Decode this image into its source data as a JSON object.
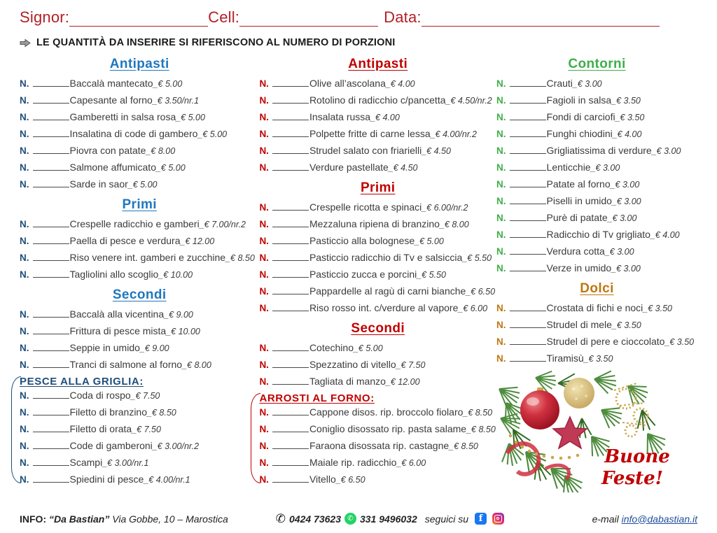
{
  "header": {
    "signor_label": "Signor:",
    "cell_label": "Cell:",
    "data_label": "Data:"
  },
  "note": "LE QUANTITÀ DA INSERIRE SI RIFERISCONO AL NUMERO DI PORZIONI",
  "labels": {
    "qty_prefix": "N."
  },
  "colors": {
    "header_red": "#b22026",
    "blue_heading": "#2077be",
    "navy": "#1f4e79",
    "red": "#c00000",
    "green": "#3fae49",
    "orange": "#c0760f"
  },
  "columns": [
    {
      "sections": [
        {
          "title": "Antipasti",
          "title_color": "#2077be",
          "n_color": "#1f4e79",
          "bracket": false,
          "items": [
            {
              "name": "Baccalà mantecato",
              "price": "€ 5.00"
            },
            {
              "name": "Capesante al forno",
              "price": "€ 3.50/nr.1"
            },
            {
              "name": "Gamberetti in salsa rosa",
              "price": "€ 5.00"
            },
            {
              "name": "Insalatina di code di gambero",
              "price": "€ 5.00"
            },
            {
              "name": "Piovra con patate",
              "price": "€ 8.00"
            },
            {
              "name": "Salmone affumicato",
              "price": "€ 5.00"
            },
            {
              "name": "Sarde in saor",
              "price": "€ 5.00"
            }
          ]
        },
        {
          "title": "Primi",
          "title_color": "#2077be",
          "n_color": "#1f4e79",
          "bracket": false,
          "items": [
            {
              "name": "Crespelle radicchio e gamberi",
              "price": "€ 7.00/nr.2"
            },
            {
              "name": "Paella di pesce e verdura",
              "price": "€ 12.00"
            },
            {
              "name": "Riso venere int. gamberi e zucchine",
              "price": "€ 8.50"
            },
            {
              "name": "Tagliolini allo scoglio",
              "price": "€ 10.00"
            }
          ]
        },
        {
          "title": "Secondi",
          "title_color": "#2077be",
          "n_color": "#1f4e79",
          "bracket": false,
          "items": [
            {
              "name": "Baccalà alla vicentina",
              "price": "€ 9.00"
            },
            {
              "name": "Frittura di pesce mista",
              "price": "€ 10.00"
            },
            {
              "name": "Seppie in umido",
              "price": "€ 9.00"
            },
            {
              "name": "Tranci di salmone al forno",
              "price": "€ 8.00"
            }
          ]
        },
        {
          "title": "PESCE ALLA GRIGLIA:",
          "title_color": "#1f4e79",
          "n_color": "#1f4e79",
          "bracket": true,
          "bracket_color": "#1f4e79",
          "items": [
            {
              "name": "Coda di rospo",
              "price": "€ 7.50"
            },
            {
              "name": "Filetto di branzino",
              "price": "€ 8.50"
            },
            {
              "name": "Filetto di orata",
              "price": "€ 7.50"
            },
            {
              "name": "Code di gamberoni",
              "price": "€ 3.00/nr.2"
            },
            {
              "name": "Scampi",
              "price": "€ 3.00/nr.1"
            },
            {
              "name": "Spiedini di pesce",
              "price": "€ 4.00/nr.1"
            }
          ]
        }
      ]
    },
    {
      "sections": [
        {
          "title": "Antipasti",
          "title_color": "#c00000",
          "n_color": "#c00000",
          "bracket": false,
          "items": [
            {
              "name": "Olive all’ascolana",
              "price": "€ 4.00"
            },
            {
              "name": "Rotolino di radicchio c/pancetta",
              "price": "€ 4.50/nr.2"
            },
            {
              "name": "Insalata russa",
              "price": "€ 4.00"
            },
            {
              "name": "Polpette fritte di carne lessa",
              "price": "€ 4.00/nr.2"
            },
            {
              "name": "Strudel salato con friarielli",
              "price": "€ 4.50"
            },
            {
              "name": "Verdure pastellate",
              "price": "€ 4.50"
            }
          ]
        },
        {
          "title": "Primi",
          "title_color": "#c00000",
          "n_color": "#c00000",
          "bracket": false,
          "items": [
            {
              "name": "Crespelle ricotta e spinaci",
              "price": "€ 6.00/nr.2"
            },
            {
              "name": "Mezzaluna ripiena di branzino",
              "price": "€ 8.00"
            },
            {
              "name": "Pasticcio alla bolognese",
              "price": "€ 5.00"
            },
            {
              "name": "Pasticcio radicchio di Tv e salsiccia",
              "price": "€ 5.50"
            },
            {
              "name": "Pasticcio zucca e porcini",
              "price": "€ 5.50"
            },
            {
              "name": "Pappardelle al ragù di carni bianche",
              "price": "€ 6.50"
            },
            {
              "name": "Riso rosso int. c/verdure al vapore",
              "price": "€ 6.00"
            }
          ]
        },
        {
          "title": "Secondi",
          "title_color": "#c00000",
          "n_color": "#c00000",
          "bracket": false,
          "items": [
            {
              "name": "Cotechino",
              "price": "€ 5.00"
            },
            {
              "name": "Spezzatino di vitello",
              "price": "€ 7.50"
            },
            {
              "name": "Tagliata di manzo",
              "price": "€ 12.00"
            }
          ]
        },
        {
          "title": "ARROSTI AL FORNO:",
          "title_color": "#c00000",
          "n_color": "#c00000",
          "bracket": true,
          "bracket_color": "#c00000",
          "items": [
            {
              "name": "Cappone disos. rip. broccolo fiolaro",
              "price": "€ 8.50"
            },
            {
              "name": "Coniglio disossato rip. pasta salame",
              "price": "€ 8.50"
            },
            {
              "name": "Faraona disossata rip. castagne",
              "price": "€ 8.50"
            },
            {
              "name": "Maiale rip. radicchio",
              "price": "€ 6.00"
            },
            {
              "name": "Vitello",
              "price": "€ 6.50"
            }
          ]
        }
      ]
    },
    {
      "sections": [
        {
          "title": "Contorni",
          "title_color": "#3fae49",
          "n_color": "#3fae49",
          "bracket": false,
          "items": [
            {
              "name": "Crauti",
              "price": "€ 3.00"
            },
            {
              "name": "Fagioli in salsa",
              "price": "€ 3.50"
            },
            {
              "name": "Fondi di carciofi",
              "price": "€ 3.50"
            },
            {
              "name": "Funghi chiodini",
              "price": "€ 4.00"
            },
            {
              "name": "Grigliatissima di verdure",
              "price": "€ 3.00"
            },
            {
              "name": "Lenticchie",
              "price": "€ 3.00"
            },
            {
              "name": "Patate al forno",
              "price": "€ 3.00"
            },
            {
              "name": "Piselli in umido",
              "price": "€ 3.00"
            },
            {
              "name": "Purè di patate",
              "price": "€ 3.00"
            },
            {
              "name": "Radicchio di Tv grigliato",
              "price": "€ 4.00"
            },
            {
              "name": "Verdura cotta",
              "price": "€ 3.00"
            },
            {
              "name": "Verze in umido",
              "price": "€ 3.00"
            }
          ]
        },
        {
          "title": "Dolci",
          "title_color": "#c0760f",
          "n_color": "#c0760f",
          "bracket": false,
          "items": [
            {
              "name": "Crostata di fichi e noci",
              "price": "€ 3.50"
            },
            {
              "name": "Strudel di mele",
              "price": "€ 3.50"
            },
            {
              "name": "Strudel di pere e cioccolato",
              "price": "€ 3.50"
            },
            {
              "name": "Tiramisù",
              "price": "€ 3.50"
            }
          ]
        }
      ]
    }
  ],
  "greeting": {
    "line1": "Buone",
    "line2": "Feste!"
  },
  "footer": {
    "info_label": "INFO:",
    "restaurant": "“Da Bastian”",
    "address": "Via Gobbe, 10 – Marostica",
    "phone": "0424 73623",
    "whatsapp": "331 9496032",
    "follow_label": "seguici su",
    "email_label": "e-mail",
    "email": "info@dabastian.it"
  }
}
